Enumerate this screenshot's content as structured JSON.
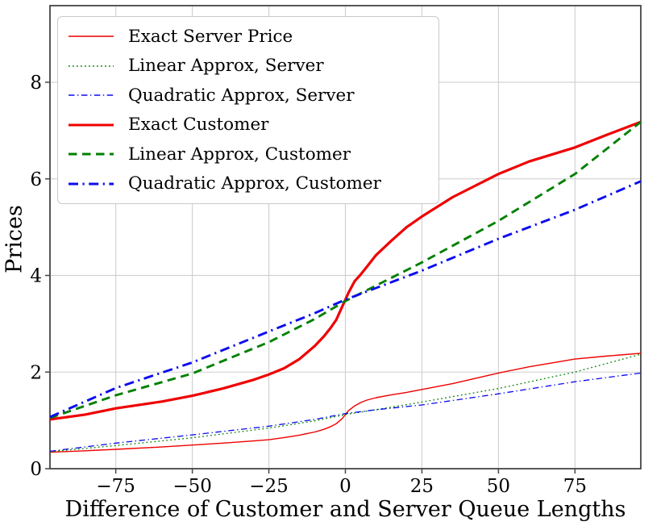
{
  "chart_data": {
    "type": "line",
    "title": "",
    "xlabel": "Difference of Customer and Server Queue Lengths",
    "ylabel": "Prices",
    "xlim": [
      -96.5,
      96.5
    ],
    "ylim": [
      0,
      9.586
    ],
    "grid": true,
    "legend_position": "upper left",
    "x_ticks": [
      -75,
      -50,
      -25,
      0,
      25,
      50,
      75
    ],
    "x_tick_labels": [
      "−75",
      "−50",
      "−25",
      "0",
      "25",
      "50",
      "75"
    ],
    "y_ticks": [
      0,
      2,
      4,
      6,
      8
    ],
    "y_tick_labels": [
      "0",
      "2",
      "4",
      "6",
      "8"
    ],
    "colors": {
      "red": "#ef0000",
      "green": "#008000",
      "blue": "#0b0bef",
      "grid": "#cfcfcf",
      "spine": "#454545"
    },
    "series": [
      {
        "name": "Exact Server Price",
        "color": "#ef0000",
        "style": "solid",
        "weight": "thin",
        "width": 1.4,
        "points": [
          [
            -96.5,
            0.34
          ],
          [
            -85,
            0.37
          ],
          [
            -75,
            0.4
          ],
          [
            -60,
            0.45
          ],
          [
            -50,
            0.49
          ],
          [
            -40,
            0.53
          ],
          [
            -30,
            0.575
          ],
          [
            -25,
            0.6
          ],
          [
            -20,
            0.645
          ],
          [
            -15,
            0.695
          ],
          [
            -10,
            0.76
          ],
          [
            -7,
            0.815
          ],
          [
            -5,
            0.865
          ],
          [
            -3,
            0.93
          ],
          [
            -1,
            1.04
          ],
          [
            0,
            1.12
          ],
          [
            1,
            1.2
          ],
          [
            3,
            1.3
          ],
          [
            5,
            1.37
          ],
          [
            7,
            1.42
          ],
          [
            10,
            1.47
          ],
          [
            15,
            1.53
          ],
          [
            20,
            1.58
          ],
          [
            25,
            1.64
          ],
          [
            35,
            1.76
          ],
          [
            50,
            1.98
          ],
          [
            60,
            2.11
          ],
          [
            75,
            2.27
          ],
          [
            85,
            2.33
          ],
          [
            96.5,
            2.39
          ]
        ]
      },
      {
        "name": "Linear Approx, Server",
        "color": "#008000",
        "style": "dotted",
        "weight": "thin",
        "width": 1.3,
        "points": [
          [
            -96.5,
            0.35
          ],
          [
            -75,
            0.48
          ],
          [
            -50,
            0.64
          ],
          [
            -25,
            0.84
          ],
          [
            -10,
            0.99
          ],
          [
            0,
            1.12
          ],
          [
            10,
            1.22
          ],
          [
            25,
            1.38
          ],
          [
            50,
            1.66
          ],
          [
            75,
            2.0
          ],
          [
            96.5,
            2.37
          ]
        ]
      },
      {
        "name": "Quadratic Approx, Server",
        "color": "#0b0bef",
        "style": "dashdot",
        "weight": "thin",
        "width": 1.3,
        "points": [
          [
            -96.5,
            0.36
          ],
          [
            -75,
            0.53
          ],
          [
            -50,
            0.7
          ],
          [
            -25,
            0.88
          ],
          [
            -10,
            1.02
          ],
          [
            0,
            1.14
          ],
          [
            10,
            1.22
          ],
          [
            25,
            1.32
          ],
          [
            50,
            1.55
          ],
          [
            75,
            1.8
          ],
          [
            96.5,
            1.98
          ]
        ]
      },
      {
        "name": "Exact Customer",
        "color": "#ef0000",
        "style": "solid",
        "weight": "thick",
        "width": 3.2,
        "points": [
          [
            -96.5,
            1.02
          ],
          [
            -85,
            1.12
          ],
          [
            -75,
            1.25
          ],
          [
            -60,
            1.39
          ],
          [
            -50,
            1.51
          ],
          [
            -40,
            1.66
          ],
          [
            -30,
            1.84
          ],
          [
            -25,
            1.95
          ],
          [
            -20,
            2.08
          ],
          [
            -15,
            2.27
          ],
          [
            -10,
            2.54
          ],
          [
            -7,
            2.74
          ],
          [
            -5,
            2.9
          ],
          [
            -3,
            3.08
          ],
          [
            -1,
            3.36
          ],
          [
            0,
            3.5
          ],
          [
            1,
            3.64
          ],
          [
            3,
            3.88
          ],
          [
            5,
            4.02
          ],
          [
            7,
            4.18
          ],
          [
            10,
            4.42
          ],
          [
            15,
            4.72
          ],
          [
            20,
            5.0
          ],
          [
            25,
            5.22
          ],
          [
            35,
            5.62
          ],
          [
            50,
            6.1
          ],
          [
            60,
            6.36
          ],
          [
            75,
            6.65
          ],
          [
            85,
            6.9
          ],
          [
            96.5,
            7.18
          ]
        ]
      },
      {
        "name": "Linear Approx, Customer",
        "color": "#008000",
        "style": "dashed",
        "weight": "thick",
        "width": 2.9,
        "points": [
          [
            -96.5,
            1.05
          ],
          [
            -75,
            1.52
          ],
          [
            -50,
            1.97
          ],
          [
            -25,
            2.62
          ],
          [
            -10,
            3.1
          ],
          [
            0,
            3.47
          ],
          [
            25,
            4.27
          ],
          [
            50,
            5.13
          ],
          [
            75,
            6.1
          ],
          [
            96.5,
            7.18
          ]
        ]
      },
      {
        "name": "Quadratic Approx, Customer",
        "color": "#0b0bef",
        "style": "dashdot",
        "weight": "thick",
        "width": 2.9,
        "points": [
          [
            -96.5,
            1.07
          ],
          [
            -75,
            1.67
          ],
          [
            -50,
            2.2
          ],
          [
            -25,
            2.84
          ],
          [
            -10,
            3.22
          ],
          [
            0,
            3.5
          ],
          [
            25,
            4.1
          ],
          [
            50,
            4.76
          ],
          [
            75,
            5.36
          ],
          [
            96.5,
            5.95
          ]
        ]
      }
    ]
  }
}
